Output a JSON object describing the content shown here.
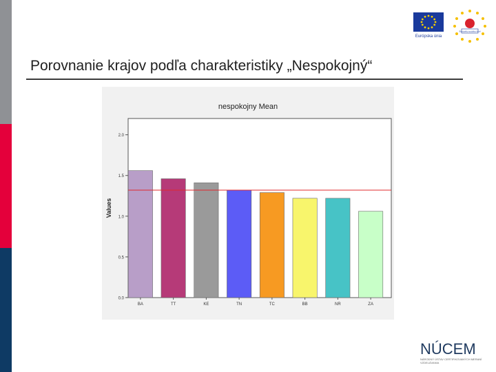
{
  "slide": {
    "title": "Porovnanie krajov podľa charakteristiky „Nespokojný“"
  },
  "logos": {
    "eu_label": "Európska únia",
    "esf_label": "Európsky sociálny fond",
    "nucem_name": "NÚCEM",
    "nucem_subtitle": "NÁRODNÝ ÚSTAV CERTIFIKOVANÝCH MERANÍ VZDELÁVANIA"
  },
  "colors": {
    "sidebar_top": "#8f9195",
    "sidebar_middle": "#e4003b",
    "sidebar_bottom": "#0e3a64",
    "reference_line": "#e0282e"
  },
  "chart_data": {
    "type": "bar",
    "title": "nespokojny Mean",
    "ylabel": "Values",
    "xlabel": "",
    "categories": [
      "BA",
      "TT",
      "KE",
      "TN",
      "TC",
      "BB",
      "NR",
      "ZA"
    ],
    "values": [
      1.56,
      1.46,
      1.41,
      1.32,
      1.29,
      1.22,
      1.22,
      1.06
    ],
    "bar_colors": [
      "#b89ec8",
      "#b63a78",
      "#9a9a9a",
      "#5c5cf6",
      "#f79a22",
      "#f8f56c",
      "#47c3c6",
      "#c8ffc8"
    ],
    "reference_line": 1.32,
    "ylim": [
      0,
      2.2
    ],
    "yticks": [
      "0.0",
      "0.5",
      "1.0",
      "1.5",
      "2.0"
    ],
    "ytick_values": [
      0,
      0.5,
      1.0,
      1.5,
      2.0
    ],
    "grid": false
  }
}
